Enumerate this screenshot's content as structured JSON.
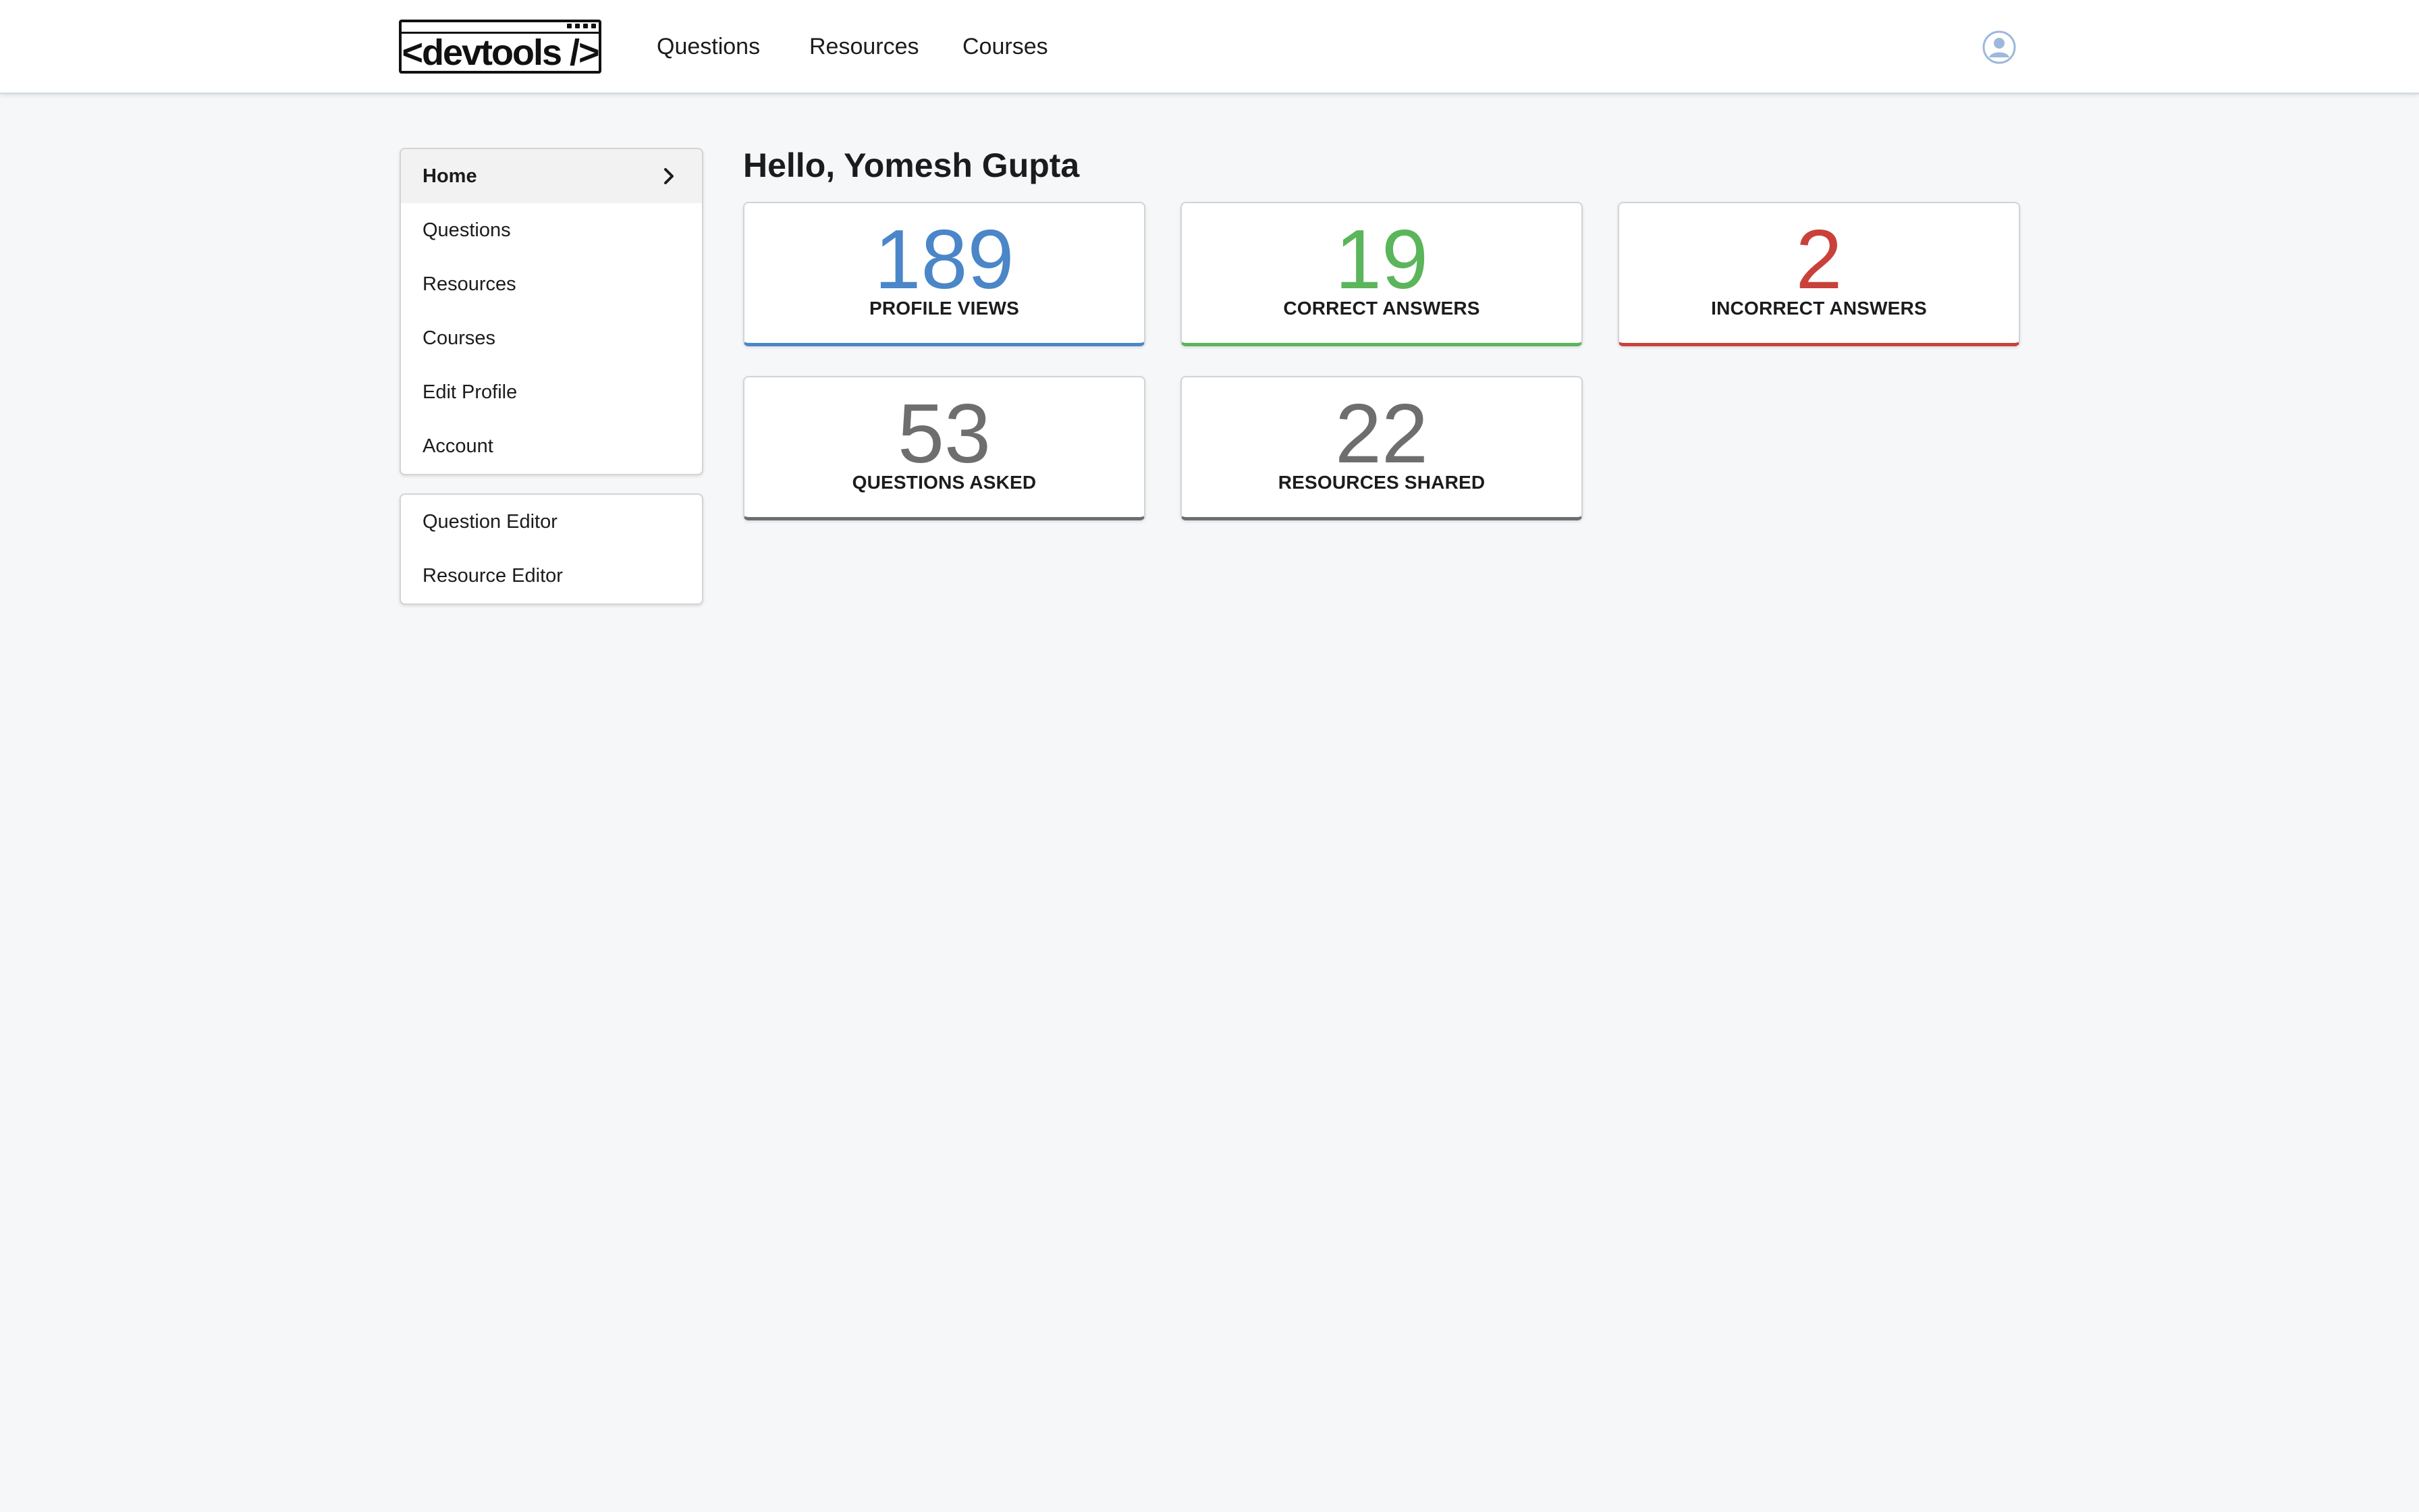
{
  "header": {
    "logo_text": "<devtools />",
    "nav": {
      "questions": "Questions",
      "resources": "Resources",
      "courses": "Courses"
    }
  },
  "sidebar": {
    "main_items": [
      {
        "label": "Home",
        "active": true
      },
      {
        "label": "Questions"
      },
      {
        "label": "Resources"
      },
      {
        "label": "Courses"
      },
      {
        "label": "Edit Profile"
      },
      {
        "label": "Account"
      }
    ],
    "editor_items": [
      {
        "label": "Question Editor"
      },
      {
        "label": "Resource Editor"
      }
    ]
  },
  "main": {
    "greeting": "Hello, Yomesh Gupta",
    "stats": [
      {
        "value": "189",
        "label": "PROFILE VIEWS",
        "color": "#4a86c8"
      },
      {
        "value": "19",
        "label": "CORRECT ANSWERS",
        "color": "#5bb55b"
      },
      {
        "value": "2",
        "label": "INCORRECT ANSWERS",
        "color": "#c9413a"
      },
      {
        "value": "53",
        "label": "QUESTIONS ASKED",
        "color": "#6e6e6e"
      },
      {
        "value": "22",
        "label": "RESOURCES SHARED",
        "color": "#6e6e6e"
      }
    ]
  },
  "icons": {
    "avatar": "user-avatar-icon",
    "chevron": "chevron-right-icon"
  }
}
